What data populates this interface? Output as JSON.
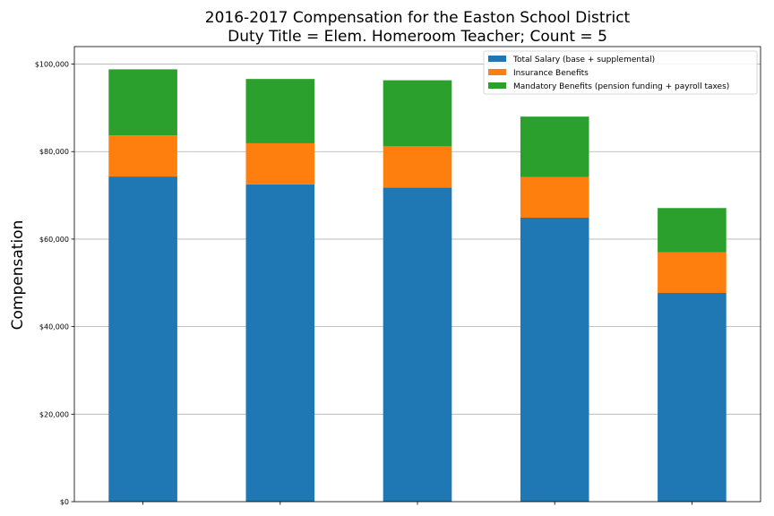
{
  "chart_data": {
    "type": "bar",
    "stacked": true,
    "title": "2016-2017 Compensation for the Easton School District",
    "subtitle": "Duty Title = Elem. Homeroom Teacher; Count = 5",
    "xlabel": "",
    "ylabel": "Compensation",
    "ylim": [
      0,
      104000
    ],
    "yticks": [
      0,
      20000,
      40000,
      60000,
      80000,
      100000
    ],
    "ytick_labels": [
      "$0",
      "$20,000",
      "$40,000",
      "$60,000",
      "$80,000",
      "$100,000"
    ],
    "grid": "horizontal",
    "legend_position": "top-right",
    "categories": [
      "",
      "",
      "",
      "",
      ""
    ],
    "series": [
      {
        "name": "Total Salary (base + supplemental)",
        "color": "#1f77b4",
        "values": [
          74300,
          72500,
          71800,
          64900,
          47700
        ]
      },
      {
        "name": "Insurance Benefits",
        "color": "#ff7f0e",
        "values": [
          9400,
          9400,
          9400,
          9300,
          9300
        ]
      },
      {
        "name": "Mandatory Benefits (pension funding + payroll taxes)",
        "color": "#2ca02c",
        "values": [
          15100,
          14700,
          15100,
          13800,
          10100
        ]
      }
    ]
  }
}
